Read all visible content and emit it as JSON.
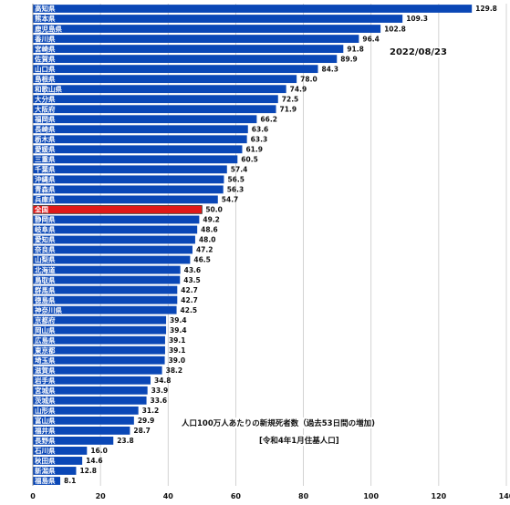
{
  "chart_data": {
    "type": "bar",
    "orientation": "horizontal",
    "categories": [
      "高知県",
      "熊本県",
      "鹿児島県",
      "香川県",
      "宮崎県",
      "佐賀県",
      "山口県",
      "島根県",
      "和歌山県",
      "大分県",
      "大阪府",
      "福岡県",
      "長崎県",
      "栃木県",
      "愛媛県",
      "三重県",
      "千葉県",
      "沖縄県",
      "青森県",
      "兵庫県",
      "全国",
      "静岡県",
      "岐阜県",
      "愛知県",
      "奈良県",
      "山梨県",
      "北海道",
      "鳥取県",
      "群馬県",
      "徳島県",
      "神奈川県",
      "京都府",
      "岡山県",
      "広島県",
      "東京都",
      "埼玉県",
      "滋賀県",
      "岩手県",
      "宮城県",
      "茨城県",
      "山形県",
      "富山県",
      "福井県",
      "長野県",
      "石川県",
      "秋田県",
      "新潟県",
      "福島県"
    ],
    "values": [
      129.8,
      109.3,
      102.8,
      96.4,
      91.8,
      89.9,
      84.3,
      78.0,
      74.9,
      72.5,
      71.9,
      66.2,
      63.6,
      63.3,
      61.9,
      60.5,
      57.4,
      56.5,
      56.3,
      54.7,
      50.0,
      49.2,
      48.6,
      48.0,
      47.2,
      46.5,
      43.6,
      43.5,
      42.7,
      42.7,
      42.5,
      39.4,
      39.4,
      39.1,
      39.1,
      39.0,
      38.2,
      34.8,
      33.9,
      33.6,
      31.2,
      29.9,
      28.7,
      23.8,
      16.0,
      14.6,
      12.8,
      8.1
    ],
    "value_labels": [
      "129.8",
      "109.3",
      "102.8",
      "96.4",
      "91.8",
      "89.9",
      "84.3",
      "78.0",
      "74.9",
      "72.5",
      "71.9",
      "66.2",
      "63.6",
      "63.3",
      "61.9",
      "60.5",
      "57.4",
      "56.5",
      "56.3",
      "54.7",
      "50.0",
      "49.2",
      "48.6",
      "48.0",
      "47.2",
      "46.5",
      "43.6",
      "43.5",
      "42.7",
      "42.7",
      "42.5",
      "39.4",
      "39.4",
      "39.1",
      "39.1",
      "39.0",
      "38.2",
      "34.8",
      "33.9",
      "33.6",
      "31.2",
      "29.9",
      "28.7",
      "23.8",
      "16.0",
      "14.6",
      "12.8",
      "8.1"
    ],
    "highlight_category": "全国",
    "xlim": [
      0,
      140
    ],
    "xticks": [
      0,
      20,
      40,
      60,
      80,
      100,
      120,
      140
    ],
    "grid": true,
    "colors": {
      "bar": "#0a47b6",
      "highlight": "#e01818"
    }
  },
  "annotations": {
    "date": "2022/08/23",
    "caption": "人口100万人あたりの新規死者数（過去53日間の増加)",
    "source": "[令和4年1月住基人口]"
  }
}
